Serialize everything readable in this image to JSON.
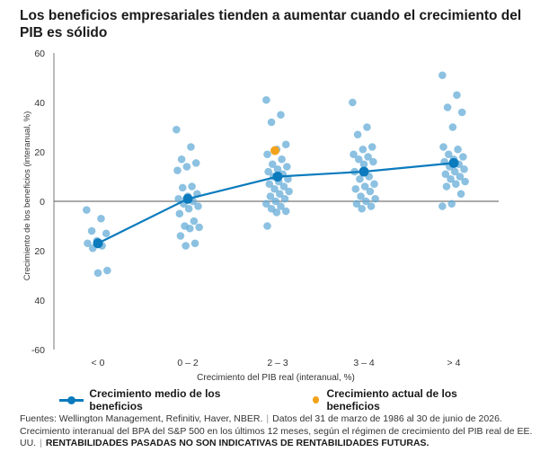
{
  "title": "Los beneficios empresariales tienden a aumentar cuando el crecimiento del PIB es sólido",
  "chart_data": {
    "type": "scatter",
    "xlabel": "Crecimiento del PIB real (interanual, %)",
    "ylabel": "Crecimiento de los beneficios (interanual, %)",
    "categories": [
      "< 0",
      "0 – 2",
      "2 – 3",
      "3 – 4",
      "> 4"
    ],
    "ylim": [
      -60,
      60
    ],
    "yticks": [
      60,
      40,
      20,
      0,
      "20",
      "40",
      "-60"
    ],
    "ytick_labels": [
      "60",
      "40",
      "20",
      "0",
      "20",
      "40",
      "-60"
    ],
    "zero_line": true,
    "colors": {
      "points": "#5fa9d6",
      "mean": "#0b7bbd",
      "current": "#f2a31b"
    },
    "series": [
      {
        "name": "Crecimiento medio de los beneficios",
        "type": "line",
        "values": [
          -17,
          1,
          10,
          12,
          15.5
        ]
      },
      {
        "name": "Crecimiento actual de los beneficios",
        "type": "point",
        "category": "2 – 3",
        "value": 20.5
      },
      {
        "name": "",
        "type": "scatter",
        "points": [
          {
            "category": "< 0",
            "values": [
              -3.5,
              -7,
              -12,
              -13,
              -16,
              -17,
              -18,
              -19,
              -28,
              -29
            ]
          },
          {
            "category": "0 – 2",
            "values": [
              29,
              22,
              17,
              15.5,
              14,
              12.5,
              6,
              5.5,
              3,
              2,
              1,
              0,
              -1,
              -2,
              -3,
              -5,
              -8,
              -10,
              -10.5,
              -11,
              -14,
              -17,
              -18
            ]
          },
          {
            "category": "2 – 3",
            "values": [
              41,
              35,
              32,
              23,
              21,
              19,
              17,
              15,
              14,
              13,
              12,
              11,
              10,
              9,
              8,
              7,
              6,
              5,
              4,
              3,
              2,
              1,
              0,
              -1,
              -2,
              -3,
              -4,
              -4.5,
              -10
            ]
          },
          {
            "category": "3 – 4",
            "values": [
              40,
              30,
              27,
              22,
              21,
              19,
              18,
              17,
              16,
              15,
              12,
              10,
              9,
              7,
              6,
              5,
              4,
              2,
              1,
              0,
              -1,
              -2,
              -3
            ]
          },
          {
            "category": "> 4",
            "values": [
              51,
              43,
              38,
              36,
              30,
              22,
              21,
              19,
              18,
              17,
              16,
              15,
              14,
              13,
              12,
              11,
              10,
              9,
              8,
              7,
              6,
              3,
              -1,
              -2
            ]
          }
        ]
      }
    ]
  },
  "legend": {
    "mean_label": "Crecimiento medio de los beneficios",
    "current_label": "Crecimiento actual de los beneficios"
  },
  "footer": {
    "sources": "Fuentes: Wellington Management, Refinitiv, Haver, NBER.",
    "dates": "Datos del 31 de marzo de 1986 al 30 de junio de 2026.",
    "note": "Crecimiento interanual del BPA del S&P 500 en los últimos 12 meses, según el régimen de crecimiento del PIB real de EE. UU.",
    "disclaimer": "RENTABILIDADES PASADAS NO SON INDICATIVAS DE RENTABILIDADES FUTURAS."
  }
}
